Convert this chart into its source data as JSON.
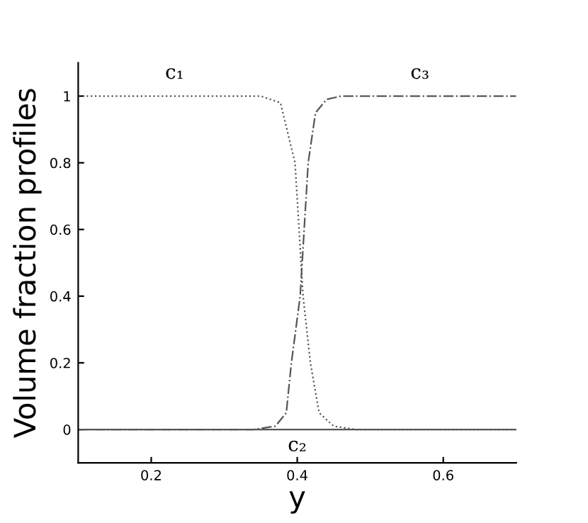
{
  "chart_data": {
    "type": "line",
    "xlabel": "y",
    "ylabel": "Volume fraction profiles",
    "xlim": [
      0.1,
      0.7
    ],
    "ylim": [
      -0.1,
      1.1
    ],
    "xticks": [
      0.2,
      0.4,
      0.6
    ],
    "yticks": [
      0,
      0.2,
      0.4,
      0.6,
      0.8,
      1
    ],
    "grid": false,
    "legend": false,
    "marker": "none",
    "series": [
      {
        "name": "c₁",
        "color": "#555555",
        "line_style": "dotted",
        "x": [
          0.1,
          0.35,
          0.377,
          0.397,
          0.408,
          0.418,
          0.43,
          0.45,
          0.48,
          0.7
        ],
        "values": [
          1,
          1,
          0.98,
          0.8,
          0.4,
          0.2,
          0.05,
          0.01,
          0,
          0
        ]
      },
      {
        "name": "c₂",
        "color": "#555555",
        "line_style": "solid",
        "x": [
          0.1,
          0.7
        ],
        "values": [
          0,
          0
        ]
      },
      {
        "name": "c₃",
        "color": "#555555",
        "line_style": "dashed",
        "x": [
          0.1,
          0.34,
          0.37,
          0.385,
          0.392,
          0.404,
          0.415,
          0.425,
          0.44,
          0.46,
          0.7
        ],
        "values": [
          0,
          0,
          0.01,
          0.05,
          0.2,
          0.4,
          0.8,
          0.95,
          0.99,
          1,
          1
        ]
      }
    ]
  }
}
